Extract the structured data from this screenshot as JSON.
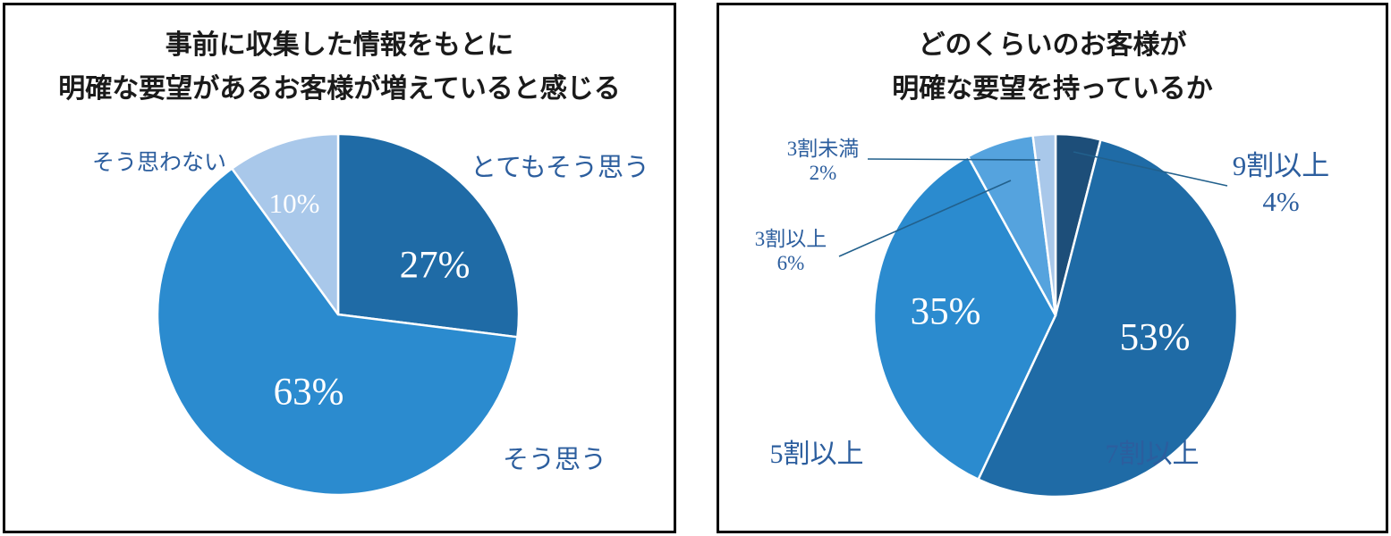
{
  "styles": {
    "background_color": "#FFFFFF",
    "panel_border_color": "#000000",
    "title_color": "#1A1A1A",
    "outside_label_color": "#2C5E9E",
    "leader_line_color": "#22608C",
    "inside_label_color": "#FFFFFF",
    "slice_border_color": "#FFFFFF"
  },
  "chart_data": [
    {
      "type": "pie",
      "title": "事前に収集した情報をもとに明確な要望があるお客様が増えていると感じる",
      "title_lines": [
        "事前に収集した情報をもとに",
        "明確な要望があるお客様が増えていると感じる"
      ],
      "start_angle_deg": 0,
      "direction": "clockwise",
      "legend": "none",
      "labels_position": "outside",
      "slices": [
        {
          "label": "とてもそう思う",
          "value": 27,
          "pct_label": "27%",
          "color": "#1F6BA6"
        },
        {
          "label": "そう思う",
          "value": 63,
          "pct_label": "63%",
          "color": "#2B8BCF"
        },
        {
          "label": "そう思わない",
          "value": 10,
          "pct_label": "10%",
          "color": "#A9C8EA"
        }
      ]
    },
    {
      "type": "pie",
      "title": "どのくらいのお客様が明確な要望を持っているか",
      "title_lines": [
        "どのくらいのお客様が",
        "明確な要望を持っているか"
      ],
      "start_angle_deg": 0,
      "direction": "clockwise",
      "legend": "none",
      "labels_position": "outside-with-leader-lines",
      "slices": [
        {
          "label": "9割以上",
          "value": 4,
          "pct_label": "4%",
          "color": "#1D4E79"
        },
        {
          "label": "7割以上",
          "value": 53,
          "pct_label": "53%",
          "color": "#1F6BA6"
        },
        {
          "label": "5割以上",
          "value": 35,
          "pct_label": "35%",
          "color": "#2B8BCF"
        },
        {
          "label": "3割以上",
          "value": 6,
          "pct_label": "6%",
          "color": "#55A3DE"
        },
        {
          "label": "3割未満",
          "value": 2,
          "pct_label": "2%",
          "color": "#A9C8EA"
        }
      ]
    }
  ]
}
